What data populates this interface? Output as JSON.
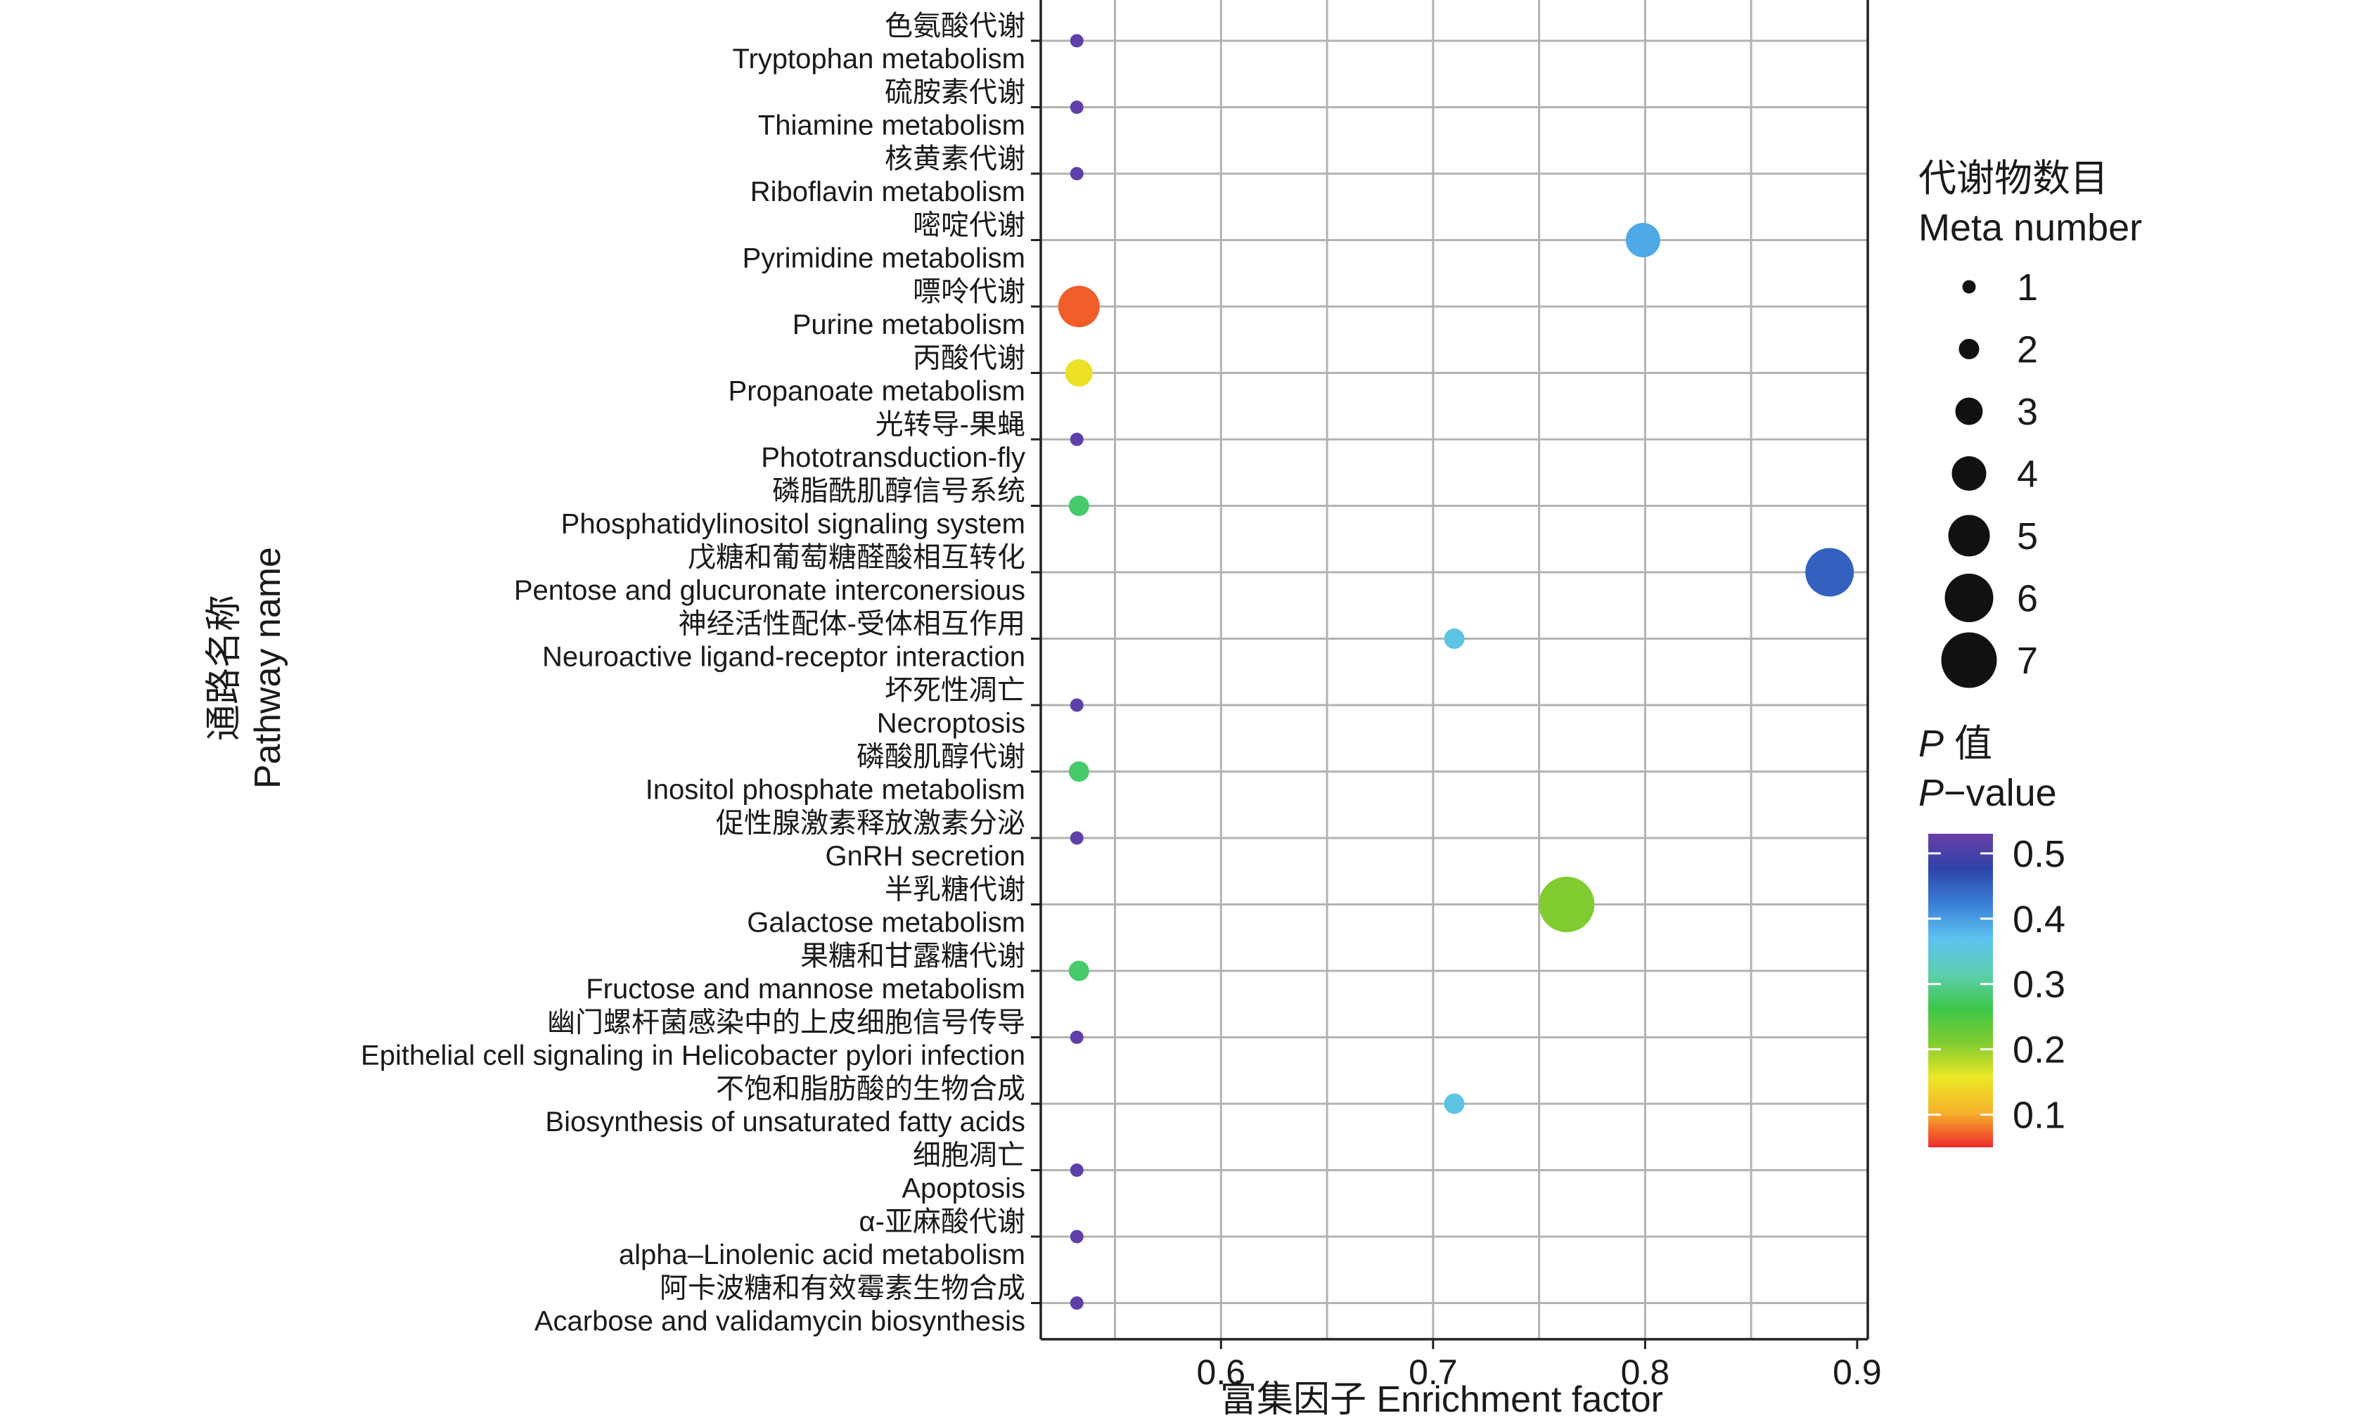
{
  "chart_data": {
    "type": "scatter",
    "xlabel": "富集因子 Enrichment factor",
    "ylabel_cn": "通路名称",
    "ylabel_en": "Pathway name",
    "xlim": [
      0.515,
      0.905
    ],
    "xticks": [
      0.6,
      0.7,
      0.8,
      0.9
    ],
    "xtick_labels": [
      "0.6",
      "0.7",
      "0.8",
      "0.9"
    ],
    "grid": true,
    "pathways": [
      {
        "cn": "色氨酸代谢",
        "en": "Tryptophan metabolism",
        "x": 0.532,
        "meta": 1,
        "p": 0.52
      },
      {
        "cn": "硫胺素代谢",
        "en": "Thiamine metabolism",
        "x": 0.532,
        "meta": 1,
        "p": 0.52
      },
      {
        "cn": "核黄素代谢",
        "en": "Riboflavin metabolism",
        "x": 0.532,
        "meta": 1,
        "p": 0.52
      },
      {
        "cn": "嘧啶代谢",
        "en": "Pyrimidine metabolism",
        "x": 0.799,
        "meta": 4,
        "p": 0.39
      },
      {
        "cn": "嘌呤代谢",
        "en": "Purine metabolism",
        "x": 0.533,
        "meta": 5,
        "p": 0.07
      },
      {
        "cn": "丙酸代谢",
        "en": "Propanoate metabolism",
        "x": 0.533,
        "meta": 3,
        "p": 0.15
      },
      {
        "cn": "光转导-果蝇",
        "en": "Phototransduction-fly",
        "x": 0.532,
        "meta": 1,
        "p": 0.52
      },
      {
        "cn": "磷脂酰肌醇信号系统",
        "en": "Phosphatidylinositol signaling system",
        "x": 0.533,
        "meta": 2,
        "p": 0.28
      },
      {
        "cn": "戊糖和葡萄糖醛酸相互转化",
        "en": "Pentose and glucuronate interconersious",
        "x": 0.887,
        "meta": 6,
        "p": 0.45
      },
      {
        "cn": "神经活性配体-受体相互作用",
        "en": "Neuroactive ligand-receptor interaction",
        "x": 0.71,
        "meta": 2,
        "p": 0.36
      },
      {
        "cn": "坏死性凋亡",
        "en": "Necroptosis",
        "x": 0.532,
        "meta": 1,
        "p": 0.52
      },
      {
        "cn": "磷酸肌醇代谢",
        "en": "Inositol phosphate metabolism",
        "x": 0.533,
        "meta": 2,
        "p": 0.28
      },
      {
        "cn": "促性腺激素释放激素分泌",
        "en": "GnRH secretion",
        "x": 0.532,
        "meta": 1,
        "p": 0.52
      },
      {
        "cn": "半乳糖代谢",
        "en": "Galactose metabolism",
        "x": 0.763,
        "meta": 7,
        "p": 0.21
      },
      {
        "cn": "果糖和甘露糖代谢",
        "en": "Fructose and mannose metabolism",
        "x": 0.533,
        "meta": 2,
        "p": 0.28
      },
      {
        "cn": "幽门螺杆菌感染中的上皮细胞信号传导",
        "en": "Epithelial cell signaling in Helicobacter pylori infection",
        "x": 0.532,
        "meta": 1,
        "p": 0.52
      },
      {
        "cn": "不饱和脂肪酸的生物合成",
        "en": "Biosynthesis of unsaturated fatty acids",
        "x": 0.71,
        "meta": 2,
        "p": 0.36
      },
      {
        "cn": "细胞凋亡",
        "en": "Apoptosis",
        "x": 0.532,
        "meta": 1,
        "p": 0.52
      },
      {
        "cn": "α-亚麻酸代谢",
        "en": "alpha–Linolenic acid metabolism",
        "x": 0.532,
        "meta": 1,
        "p": 0.52
      },
      {
        "cn": "阿卡波糖和有效霉素生物合成",
        "en": "Acarbose and validamycin biosynthesis",
        "x": 0.532,
        "meta": 1,
        "p": 0.52
      }
    ],
    "size_legend": {
      "title_cn": "代谢物数目",
      "title_en": "Meta number",
      "values": [
        1,
        2,
        3,
        4,
        5,
        6,
        7
      ]
    },
    "color_legend": {
      "title_cn_italic": "P",
      "title_cn_rest": " 值",
      "title_en_italic": "P",
      "title_en_rest": "−value",
      "ticks": [
        0.5,
        0.4,
        0.3,
        0.2,
        0.1
      ],
      "tick_labels": [
        "0.5",
        "0.4",
        "0.3",
        "0.2",
        "0.1"
      ],
      "range": [
        0.05,
        0.53
      ],
      "colors": [
        "#ee2a2a",
        "#f6b22a",
        "#ece826",
        "#80cc30",
        "#3cc74a",
        "#5fcfb2",
        "#5cc2f0",
        "#3a7fd6",
        "#2e43a8",
        "#6a3fa8"
      ]
    }
  }
}
